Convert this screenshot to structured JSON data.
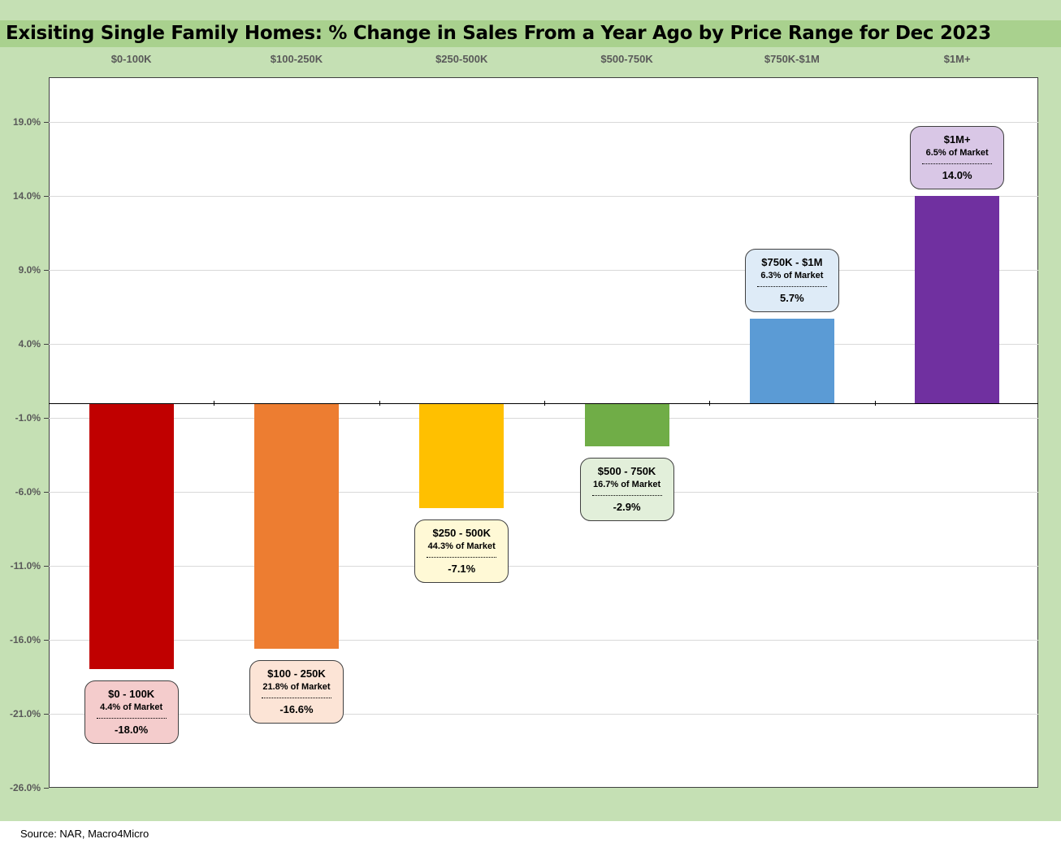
{
  "title": "Exisiting Single Family Homes: % Change in Sales From a Year Ago by Price Range for Dec 2023",
  "source": "Source: NAR, Macro4Micro",
  "chart_data": {
    "type": "bar",
    "categories": [
      "$0-100K",
      "$100-250K",
      "$250-500K",
      "$500-750K",
      "$750K-$1M",
      "$1M+"
    ],
    "values": [
      -18.0,
      -16.6,
      -7.1,
      -2.9,
      5.7,
      14.0
    ],
    "colors": [
      "#c00000",
      "#ed7d31",
      "#ffc000",
      "#70ad47",
      "#5b9bd5",
      "#7030a0"
    ],
    "ylim": [
      -26.0,
      22.0
    ],
    "yticks": [
      "19.0%",
      "14.0%",
      "9.0%",
      "4.0%",
      "-1.0%",
      "-6.0%",
      "-11.0%",
      "-16.0%",
      "-21.0%",
      "-26.0%"
    ],
    "ytick_values": [
      19.0,
      14.0,
      9.0,
      4.0,
      -1.0,
      -6.0,
      -11.0,
      -16.0,
      -21.0,
      -26.0
    ],
    "grid": true,
    "xaxis_position": "top",
    "annotations": [
      {
        "range": "$0 - 100K",
        "share": "4.4% of Market",
        "change": "-18.0%",
        "fill": "#f4cccc"
      },
      {
        "range": "$100 - 250K",
        "share": "21.8% of Market",
        "change": "-16.6%",
        "fill": "#fce4d6"
      },
      {
        "range": "$250 - 500K",
        "share": "44.3% of Market",
        "change": "-7.1%",
        "fill": "#fff9d6"
      },
      {
        "range": "$500 - 750K",
        "share": "16.7% of Market",
        "change": "-2.9%",
        "fill": "#e2efda"
      },
      {
        "range": "$750K - $1M",
        "share": "6.3% of Market",
        "change": "5.7%",
        "fill": "#deebf7"
      },
      {
        "range": "$1M+",
        "share": "6.5% of Market",
        "change": "14.0%",
        "fill": "#d9c7e6"
      }
    ]
  }
}
